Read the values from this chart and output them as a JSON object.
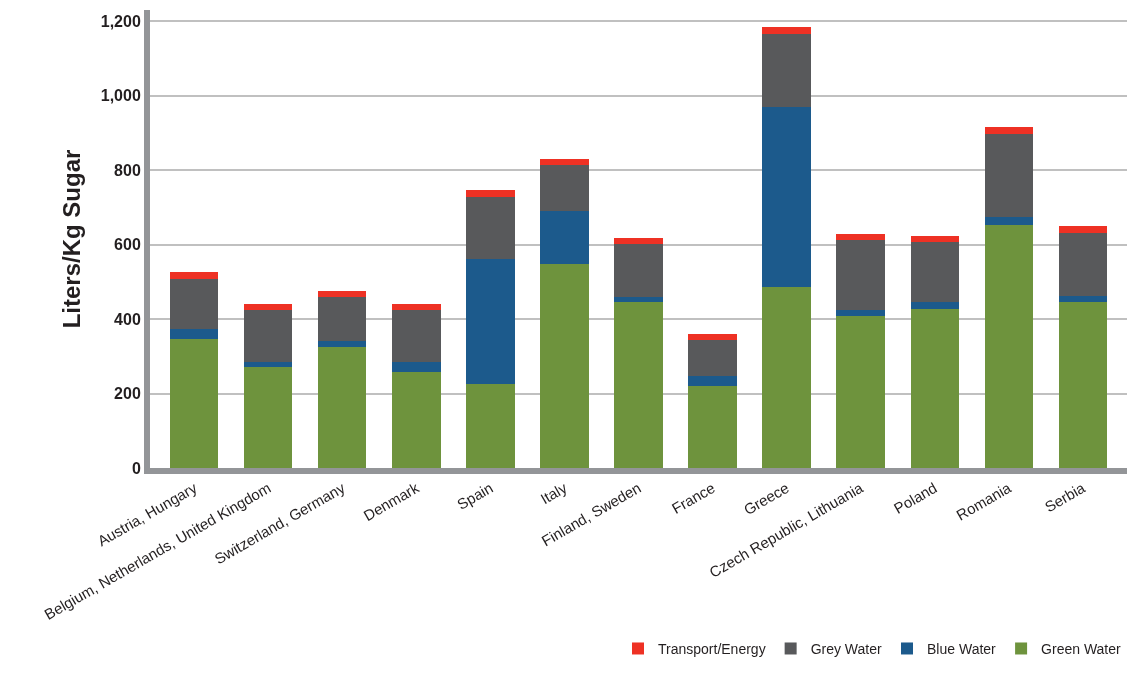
{
  "chart_data": {
    "type": "bar",
    "stacked": true,
    "ylabel": "Liters/Kg Sugar",
    "categories": [
      "Austria, Hungary",
      "Belgium, Netherlands, United Kingdom",
      "Switzerland, Germany",
      "Denmark",
      "Spain",
      "Italy",
      "Finland, Sweden",
      "France",
      "Greece",
      "Czech Republic, Lithuania",
      "Poland",
      "Romania",
      "Serbia"
    ],
    "series": [
      {
        "name": "Green Water",
        "color": "#6e933d",
        "values": [
          347,
          272,
          325,
          258,
          226,
          548,
          445,
          219,
          486,
          409,
          428,
          653,
          445
        ]
      },
      {
        "name": "Blue Water",
        "color": "#1c5a8c",
        "values": [
          26,
          14,
          17,
          27,
          335,
          142,
          14,
          27,
          484,
          14,
          18,
          21,
          18
        ]
      },
      {
        "name": "Grey Water",
        "color": "#58595b",
        "values": [
          134,
          137,
          117,
          138,
          168,
          124,
          143,
          98,
          196,
          188,
          160,
          224,
          168
        ]
      },
      {
        "name": "Transport/Energy",
        "color": "#ee3124",
        "values": [
          19,
          18,
          17,
          18,
          17,
          17,
          17,
          17,
          18,
          17,
          16,
          17,
          18
        ]
      }
    ],
    "ylim": [
      0,
      1230
    ],
    "yticks": [
      0,
      {
        "value": 200,
        "label": "200"
      },
      {
        "value": 400,
        "label": "400"
      },
      {
        "value": 600,
        "label": "600"
      },
      {
        "value": 800,
        "label": "800"
      },
      {
        "value": 1000,
        "label": "1,000"
      },
      {
        "value": 1200,
        "label": "1,200"
      }
    ],
    "grid": "y",
    "legend": "bottom right"
  }
}
